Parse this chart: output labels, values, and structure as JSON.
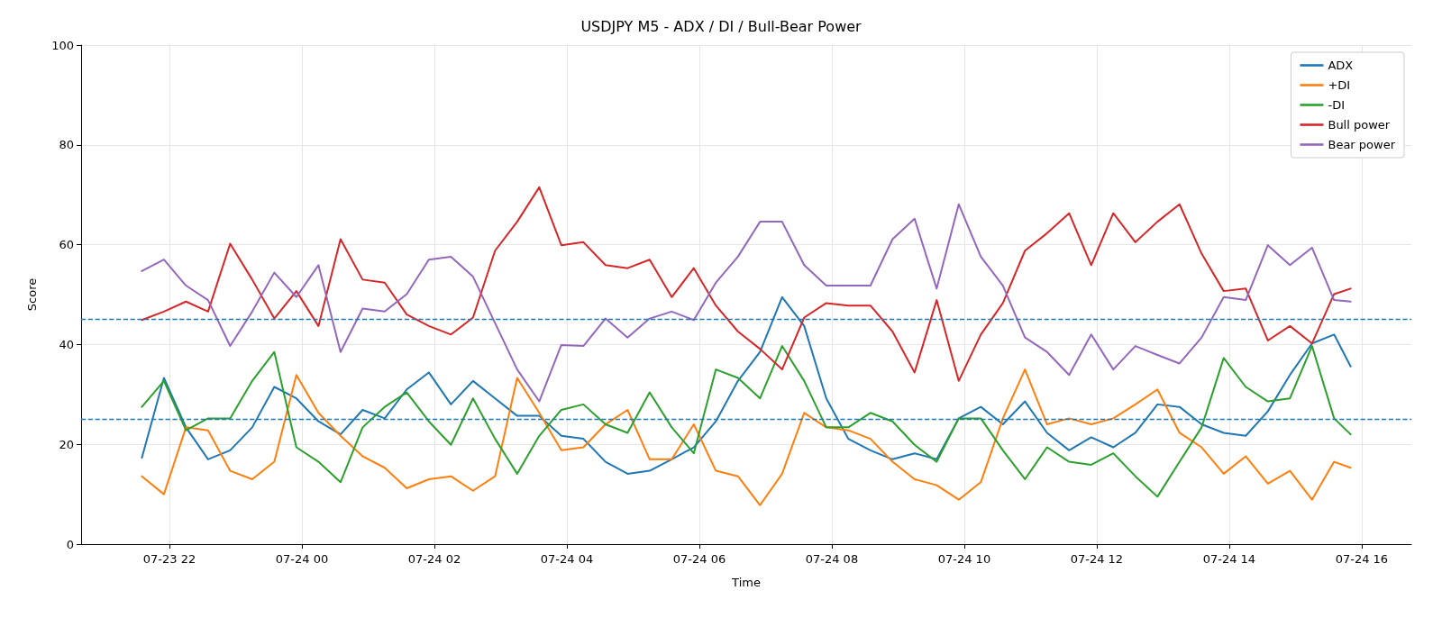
{
  "chart_data": {
    "type": "line",
    "title": "USDJPY M5 - ADX / DI / Bull-Bear Power",
    "xlabel": "Time",
    "ylabel": "Score",
    "x": [
      "--07-23T21:35",
      "--07-23T21:55",
      "--07-23T22:15",
      "--07-23T22:35",
      "--07-23T22:55",
      "--07-23T23:15",
      "--07-23T23:35",
      "--07-23T23:55",
      "--07-24T00:15",
      "--07-24T00:35",
      "--07-24T00:55",
      "--07-24T01:15",
      "--07-24T01:35",
      "--07-24T01:55",
      "--07-24T02:15",
      "--07-24T02:35",
      "--07-24T02:55",
      "--07-24T03:15",
      "--07-24T03:35",
      "--07-24T03:55",
      "--07-24T04:15",
      "--07-24T04:35",
      "--07-24T04:55",
      "--07-24T05:15",
      "--07-24T05:35",
      "--07-24T05:55",
      "--07-24T06:15",
      "--07-24T06:35",
      "--07-24T06:55",
      "--07-24T07:15",
      "--07-24T07:35",
      "--07-24T07:55",
      "--07-24T08:15",
      "--07-24T08:35",
      "--07-24T08:55",
      "--07-24T09:15",
      "--07-24T09:35",
      "--07-24T09:55",
      "--07-24T10:15",
      "--07-24T10:35",
      "--07-24T10:55",
      "--07-24T11:15",
      "--07-24T11:35",
      "--07-24T11:55",
      "--07-24T12:15",
      "--07-24T12:35",
      "--07-24T12:55",
      "--07-24T13:15",
      "--07-24T13:35",
      "--07-24T13:55",
      "--07-24T14:15",
      "--07-24T14:35",
      "--07-24T14:55",
      "--07-24T15:15",
      "--07-24T15:35",
      "--07-24T15:50"
    ],
    "series": [
      {
        "name": "ADX",
        "color": "#1f77b4",
        "values": [
          17.3,
          33.3,
          23.4,
          17,
          18.8,
          23.4,
          31.5,
          29.2,
          24.6,
          22,
          26.9,
          25.2,
          31,
          34.4,
          28,
          32.7,
          29.2,
          25.7,
          25.7,
          21.7,
          21.1,
          16.5,
          14.1,
          14.7,
          17,
          19.4,
          24.6,
          32.7,
          38.5,
          49.5,
          43.7,
          29.2,
          21.1,
          18.8,
          17,
          18.2,
          17,
          25.2,
          27.5,
          24,
          28.6,
          22.3,
          18.8,
          21.4,
          19.4,
          22.3,
          28,
          27.5,
          24,
          22.3,
          21.7,
          26.6,
          33.9,
          40.2,
          42,
          35.6
        ]
      },
      {
        "name": "+DI",
        "color": "#ff7f0e",
        "values": [
          13.6,
          10,
          23.4,
          22.8,
          14.7,
          13,
          16.5,
          33.9,
          26.3,
          21.7,
          17.6,
          15.3,
          11.2,
          13,
          13.6,
          10.7,
          13.6,
          33.3,
          26.3,
          18.8,
          19.4,
          24,
          26.9,
          17,
          17,
          24,
          14.7,
          13.6,
          7.8,
          14.1,
          26.3,
          23.4,
          22.8,
          21.1,
          16.5,
          13,
          11.8,
          8.9,
          12.4,
          25.2,
          35,
          24,
          25.2,
          24,
          25.2,
          28,
          31,
          22.3,
          19.4,
          14.1,
          17.6,
          12.1,
          14.7,
          8.9,
          16.5,
          15.3
        ]
      },
      {
        "name": "-DI",
        "color": "#2ca02c",
        "values": [
          27.5,
          32.7,
          22.8,
          25.2,
          25.2,
          32.7,
          38.5,
          19.4,
          16.5,
          12.4,
          23.4,
          27.5,
          30.4,
          24.6,
          19.9,
          29.2,
          21.1,
          14.1,
          21.7,
          26.9,
          28,
          24,
          22.3,
          30.4,
          23.4,
          18.2,
          35,
          33.3,
          29.2,
          39.7,
          32.7,
          23.4,
          23.4,
          26.3,
          24.6,
          19.9,
          16.5,
          25.2,
          25.2,
          18.8,
          13,
          19.4,
          16.5,
          15.9,
          18.2,
          13.6,
          9.5,
          16.5,
          23.4,
          37.3,
          31.5,
          28.6,
          29.2,
          39.7,
          25.2,
          22
        ]
      },
      {
        "name": "Bull power",
        "color": "#d62728",
        "values": [
          44.9,
          46.6,
          48.6,
          46.6,
          60.2,
          53,
          45.2,
          50.7,
          43.7,
          61.1,
          53,
          52.4,
          46,
          43.7,
          42,
          45.4,
          58.8,
          64.6,
          71.5,
          59.9,
          60.5,
          55.9,
          55.3,
          57,
          49.5,
          55.3,
          47.8,
          42.6,
          39.1,
          35,
          45.4,
          48.3,
          47.8,
          47.8,
          42.6,
          34.4,
          48.9,
          32.7,
          42,
          48.3,
          58.8,
          62.3,
          66.3,
          55.9,
          66.3,
          60.5,
          64.6,
          68.1,
          58.2,
          50.7,
          51.2,
          40.8,
          43.7,
          40.2,
          50.1,
          51.2
        ]
      },
      {
        "name": "Bear power",
        "color": "#9467bd",
        "values": [
          54.7,
          57,
          51.8,
          48.9,
          39.7,
          46.6,
          54.4,
          49.5,
          55.9,
          38.5,
          47.2,
          46.6,
          50.1,
          57,
          57.6,
          53.6,
          44.3,
          35,
          28.6,
          39.9,
          39.7,
          45.2,
          41.4,
          45.2,
          46.6,
          44.9,
          52.4,
          57.6,
          64.6,
          64.6,
          55.9,
          51.8,
          51.8,
          51.8,
          61.1,
          65.2,
          51.2,
          68.1,
          57.6,
          51.8,
          41.4,
          38.5,
          33.9,
          42,
          35,
          39.7,
          37.9,
          36.2,
          41.4,
          49.5,
          48.9,
          59.9,
          55.9,
          59.4,
          48.9,
          48.6
        ]
      }
    ],
    "xlim": [
      "--07-23T20:40",
      "--07-24T16:45"
    ],
    "xticks": [
      {
        "value": "--07-23T22:00",
        "label": "07-23 22"
      },
      {
        "value": "--07-24T00:00",
        "label": "07-24 00"
      },
      {
        "value": "--07-24T02:00",
        "label": "07-24 02"
      },
      {
        "value": "--07-24T04:00",
        "label": "07-24 04"
      },
      {
        "value": "--07-24T06:00",
        "label": "07-24 06"
      },
      {
        "value": "--07-24T08:00",
        "label": "07-24 08"
      },
      {
        "value": "--07-24T10:00",
        "label": "07-24 10"
      },
      {
        "value": "--07-24T12:00",
        "label": "07-24 12"
      },
      {
        "value": "--07-24T14:00",
        "label": "07-24 14"
      },
      {
        "value": "--07-24T16:00",
        "label": "07-24 16"
      }
    ],
    "ylim": [
      0,
      100
    ],
    "yticks": [
      0,
      20,
      40,
      60,
      80,
      100
    ],
    "ref_lines": [
      {
        "axis": "y",
        "value": 45,
        "color": "#1f77b4",
        "line_style": "dashed"
      },
      {
        "axis": "y",
        "value": 25,
        "color": "#1f77b4",
        "line_style": "dashed"
      }
    ],
    "grid": true,
    "legend": "top right",
    "marker": "none"
  }
}
